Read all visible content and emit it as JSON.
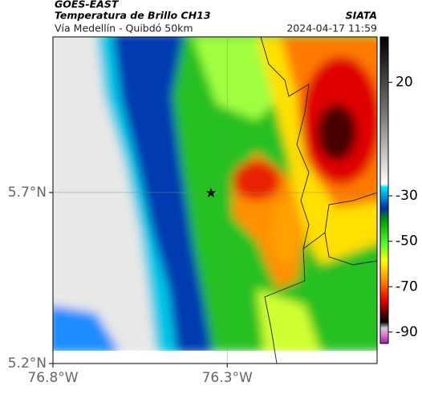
{
  "header": {
    "satellite": "GOES-EAST",
    "title": "Temperatura de Brillo CH13",
    "source": "SIATA",
    "route": "Vía Medellín - Quibdó 50km",
    "timestamp": "2024-04-17 11:59"
  },
  "map": {
    "xlim": [
      -76.8,
      -75.87
    ],
    "ylim": [
      5.2,
      6.155
    ],
    "xticks": [
      {
        "value": -76.8,
        "label": "76.8°W"
      },
      {
        "value": -76.3,
        "label": "76.3°W"
      }
    ],
    "yticks": [
      {
        "value": 5.7,
        "label": "5.7°N"
      },
      {
        "value": 5.2,
        "label": "5.2°N"
      }
    ],
    "colorbar": {
      "lim": [
        40,
        -95
      ],
      "ticks": [
        20,
        -30,
        -50,
        -70,
        -90
      ]
    }
  }
}
